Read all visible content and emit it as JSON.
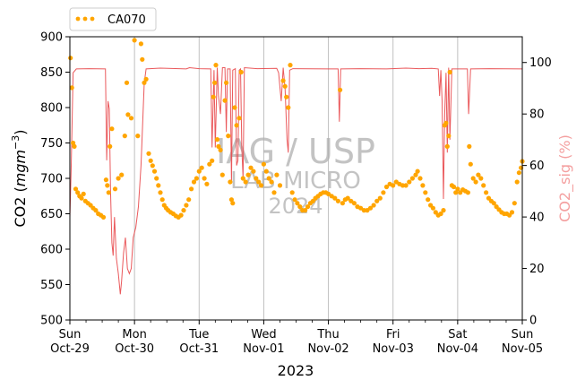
{
  "chart_data": {
    "type": "scatter+line",
    "xlabel": "2023",
    "ylabel_left": "CO2 (mgm⁻³)",
    "ylabel_left_prefix": "CO2 (",
    "ylabel_left_unit": "mgm",
    "ylabel_left_exp": "−3",
    "ylabel_left_suffix": ")",
    "ylabel_right": "CO2_sig (%)",
    "ylim_left": [
      500,
      900
    ],
    "ylim_right": [
      0,
      110
    ],
    "yticks_left": [
      500,
      550,
      600,
      650,
      700,
      750,
      800,
      850,
      900
    ],
    "yticks_right": [
      0,
      20,
      40,
      60,
      80,
      100
    ],
    "x_range_days": [
      0,
      7
    ],
    "xtick_labels": [
      {
        "day": "Sun",
        "date": "Oct-29"
      },
      {
        "day": "Mon",
        "date": "Oct-30"
      },
      {
        "day": "Tue",
        "date": "Oct-31"
      },
      {
        "day": "Wed",
        "date": "Nov-01"
      },
      {
        "day": "Thu",
        "date": "Nov-02"
      },
      {
        "day": "Fri",
        "date": "Nov-03"
      },
      {
        "day": "Sat",
        "date": "Nov-04"
      },
      {
        "day": "Sun",
        "date": "Nov-05"
      }
    ],
    "grid": "vertical at day boundaries",
    "legend": {
      "position": "top-left",
      "entries": [
        {
          "name": "CA070",
          "color": "#FFA500",
          "marker": "dots"
        }
      ]
    },
    "watermark": {
      "line1": "IAG / USP",
      "line2": "LAB MICRO",
      "line3": "2024"
    },
    "colors": {
      "scatter": "#FFA500",
      "line": "#E8474A",
      "right_axis_label": "#F4A0A0"
    },
    "series": [
      {
        "name": "CA070",
        "axis": "left",
        "style": "scatter",
        "points": [
          [
            0.01,
            870
          ],
          [
            0.03,
            828
          ],
          [
            0.05,
            750
          ],
          [
            0.07,
            745
          ],
          [
            0.09,
            685
          ],
          [
            0.12,
            680
          ],
          [
            0.15,
            675
          ],
          [
            0.18,
            672
          ],
          [
            0.21,
            678
          ],
          [
            0.24,
            668
          ],
          [
            0.28,
            665
          ],
          [
            0.32,
            662
          ],
          [
            0.36,
            658
          ],
          [
            0.4,
            655
          ],
          [
            0.44,
            650
          ],
          [
            0.48,
            648
          ],
          [
            0.52,
            645
          ],
          [
            0.56,
            698
          ],
          [
            0.58,
            690
          ],
          [
            0.6,
            680
          ],
          [
            0.62,
            745
          ],
          [
            0.65,
            770
          ],
          [
            0.7,
            685
          ],
          [
            0.75,
            700
          ],
          [
            0.8,
            705
          ],
          [
            0.85,
            760
          ],
          [
            0.88,
            835
          ],
          [
            0.9,
            790
          ],
          [
            0.95,
            785
          ],
          [
            1.0,
            895
          ],
          [
            1.05,
            760
          ],
          [
            1.1,
            890
          ],
          [
            1.12,
            868
          ],
          [
            1.15,
            835
          ],
          [
            1.18,
            840
          ],
          [
            1.22,
            735
          ],
          [
            1.25,
            725
          ],
          [
            1.28,
            718
          ],
          [
            1.31,
            710
          ],
          [
            1.34,
            700
          ],
          [
            1.37,
            690
          ],
          [
            1.4,
            680
          ],
          [
            1.43,
            670
          ],
          [
            1.46,
            662
          ],
          [
            1.49,
            658
          ],
          [
            1.52,
            655
          ],
          [
            1.56,
            652
          ],
          [
            1.6,
            650
          ],
          [
            1.64,
            647
          ],
          [
            1.68,
            645
          ],
          [
            1.72,
            648
          ],
          [
            1.76,
            655
          ],
          [
            1.8,
            662
          ],
          [
            1.84,
            670
          ],
          [
            1.88,
            685
          ],
          [
            1.92,
            695
          ],
          [
            1.96,
            700
          ],
          [
            2.0,
            710
          ],
          [
            2.04,
            715
          ],
          [
            2.08,
            700
          ],
          [
            2.12,
            692
          ],
          [
            2.16,
            720
          ],
          [
            2.2,
            725
          ],
          [
            2.22,
            815
          ],
          [
            2.24,
            835
          ],
          [
            2.26,
            860
          ],
          [
            2.28,
            755
          ],
          [
            2.3,
            745
          ],
          [
            2.33,
            740
          ],
          [
            2.36,
            705
          ],
          [
            2.4,
            810
          ],
          [
            2.42,
            835
          ],
          [
            2.45,
            760
          ],
          [
            2.48,
            695
          ],
          [
            2.5,
            670
          ],
          [
            2.52,
            665
          ],
          [
            2.55,
            800
          ],
          [
            2.58,
            775
          ],
          [
            2.62,
            785
          ],
          [
            2.65,
            850
          ],
          [
            2.68,
            700
          ],
          [
            2.72,
            695
          ],
          [
            2.76,
            705
          ],
          [
            2.8,
            715
          ],
          [
            2.84,
            710
          ],
          [
            2.88,
            700
          ],
          [
            2.92,
            695
          ],
          [
            2.96,
            690
          ],
          [
            3.0,
            720
          ],
          [
            3.04,
            710
          ],
          [
            3.08,
            700
          ],
          [
            3.12,
            695
          ],
          [
            3.16,
            680
          ],
          [
            3.2,
            705
          ],
          [
            3.25,
            690
          ],
          [
            3.3,
            838
          ],
          [
            3.33,
            830
          ],
          [
            3.35,
            815
          ],
          [
            3.38,
            800
          ],
          [
            3.41,
            860
          ],
          [
            3.44,
            680
          ],
          [
            3.48,
            670
          ],
          [
            3.52,
            665
          ],
          [
            3.56,
            660
          ],
          [
            3.6,
            655
          ],
          [
            3.64,
            655
          ],
          [
            3.68,
            660
          ],
          [
            3.72,
            665
          ],
          [
            3.76,
            668
          ],
          [
            3.8,
            672
          ],
          [
            3.84,
            675
          ],
          [
            3.88,
            678
          ],
          [
            3.92,
            680
          ],
          [
            3.96,
            680
          ],
          [
            4.0,
            678
          ],
          [
            4.05,
            675
          ],
          [
            4.1,
            672
          ],
          [
            4.15,
            668
          ],
          [
            4.18,
            825
          ],
          [
            4.22,
            665
          ],
          [
            4.26,
            670
          ],
          [
            4.3,
            672
          ],
          [
            4.35,
            668
          ],
          [
            4.4,
            665
          ],
          [
            4.45,
            660
          ],
          [
            4.5,
            658
          ],
          [
            4.55,
            655
          ],
          [
            4.6,
            655
          ],
          [
            4.65,
            658
          ],
          [
            4.7,
            662
          ],
          [
            4.75,
            668
          ],
          [
            4.8,
            672
          ],
          [
            4.85,
            680
          ],
          [
            4.9,
            688
          ],
          [
            4.95,
            692
          ],
          [
            5.0,
            690
          ],
          [
            5.05,
            695
          ],
          [
            5.1,
            692
          ],
          [
            5.15,
            690
          ],
          [
            5.2,
            690
          ],
          [
            5.25,
            695
          ],
          [
            5.3,
            700
          ],
          [
            5.35,
            705
          ],
          [
            5.38,
            710
          ],
          [
            5.42,
            700
          ],
          [
            5.46,
            690
          ],
          [
            5.5,
            680
          ],
          [
            5.54,
            670
          ],
          [
            5.58,
            662
          ],
          [
            5.62,
            658
          ],
          [
            5.66,
            652
          ],
          [
            5.7,
            648
          ],
          [
            5.74,
            650
          ],
          [
            5.78,
            655
          ],
          [
            5.8,
            775
          ],
          [
            5.82,
            778
          ],
          [
            5.84,
            745
          ],
          [
            5.86,
            760
          ],
          [
            5.88,
            850
          ],
          [
            5.91,
            690
          ],
          [
            5.94,
            688
          ],
          [
            5.97,
            680
          ],
          [
            6.0,
            685
          ],
          [
            6.04,
            680
          ],
          [
            6.08,
            684
          ],
          [
            6.12,
            682
          ],
          [
            6.16,
            680
          ],
          [
            6.18,
            745
          ],
          [
            6.2,
            720
          ],
          [
            6.24,
            700
          ],
          [
            6.28,
            695
          ],
          [
            6.32,
            705
          ],
          [
            6.36,
            700
          ],
          [
            6.4,
            690
          ],
          [
            6.44,
            680
          ],
          [
            6.48,
            672
          ],
          [
            6.52,
            668
          ],
          [
            6.56,
            665
          ],
          [
            6.6,
            660
          ],
          [
            6.64,
            656
          ],
          [
            6.68,
            652
          ],
          [
            6.72,
            650
          ],
          [
            6.76,
            650
          ],
          [
            6.8,
            648
          ],
          [
            6.84,
            652
          ],
          [
            6.88,
            665
          ],
          [
            6.92,
            695
          ],
          [
            6.95,
            708
          ],
          [
            6.98,
            715
          ],
          [
            7.0,
            724
          ]
        ]
      },
      {
        "name": "CO2_sig",
        "axis": "right",
        "style": "line",
        "points": [
          [
            0.0,
            40
          ],
          [
            0.02,
            58
          ],
          [
            0.05,
            96
          ],
          [
            0.1,
            97.5
          ],
          [
            0.3,
            97.6
          ],
          [
            0.55,
            97.5
          ],
          [
            0.57,
            62
          ],
          [
            0.59,
            85
          ],
          [
            0.61,
            82
          ],
          [
            0.63,
            50
          ],
          [
            0.65,
            30
          ],
          [
            0.67,
            25
          ],
          [
            0.69,
            40
          ],
          [
            0.72,
            24
          ],
          [
            0.75,
            18
          ],
          [
            0.78,
            10
          ],
          [
            0.8,
            15
          ],
          [
            0.83,
            26
          ],
          [
            0.86,
            32
          ],
          [
            0.89,
            20
          ],
          [
            0.92,
            18
          ],
          [
            0.95,
            20
          ],
          [
            0.98,
            32
          ],
          [
            1.02,
            36
          ],
          [
            1.06,
            44
          ],
          [
            1.1,
            60
          ],
          [
            1.15,
            92
          ],
          [
            1.18,
            97.5
          ],
          [
            1.4,
            97.8
          ],
          [
            1.8,
            97.5
          ],
          [
            1.85,
            98
          ],
          [
            2.0,
            97.6
          ],
          [
            2.18,
            97.5
          ],
          [
            2.2,
            67
          ],
          [
            2.23,
            97
          ],
          [
            2.25,
            67
          ],
          [
            2.28,
            98
          ],
          [
            2.3,
            87
          ],
          [
            2.33,
            80
          ],
          [
            2.36,
            98
          ],
          [
            2.4,
            98
          ],
          [
            2.42,
            73
          ],
          [
            2.44,
            97.5
          ],
          [
            2.48,
            97.5
          ],
          [
            2.5,
            53
          ],
          [
            2.52,
            97
          ],
          [
            2.56,
            97.6
          ],
          [
            2.58,
            60
          ],
          [
            2.6,
            62
          ],
          [
            2.62,
            97
          ],
          [
            2.64,
            97.5
          ],
          [
            2.66,
            67
          ],
          [
            2.68,
            55
          ],
          [
            2.7,
            98
          ],
          [
            2.9,
            97.6
          ],
          [
            3.2,
            97.7
          ],
          [
            3.23,
            96
          ],
          [
            3.27,
            85
          ],
          [
            3.3,
            98
          ],
          [
            3.33,
            90
          ],
          [
            3.36,
            70
          ],
          [
            3.38,
            65
          ],
          [
            3.4,
            97
          ],
          [
            3.45,
            97.6
          ],
          [
            4.0,
            97.5
          ],
          [
            4.15,
            97.5
          ],
          [
            4.17,
            77
          ],
          [
            4.19,
            97.5
          ],
          [
            4.5,
            97.6
          ],
          [
            4.9,
            97.5
          ],
          [
            5.2,
            97.8
          ],
          [
            5.4,
            97.6
          ],
          [
            5.6,
            97.7
          ],
          [
            5.7,
            97.5
          ],
          [
            5.72,
            87
          ],
          [
            5.74,
            97
          ],
          [
            5.76,
            85
          ],
          [
            5.78,
            47
          ],
          [
            5.8,
            80
          ],
          [
            5.82,
            96
          ],
          [
            5.84,
            65
          ],
          [
            5.86,
            98
          ],
          [
            5.88,
            70
          ],
          [
            5.91,
            97.5
          ],
          [
            6.1,
            97.5
          ],
          [
            6.15,
            97.5
          ],
          [
            6.17,
            80
          ],
          [
            6.2,
            97.5
          ],
          [
            6.5,
            97.6
          ],
          [
            7.0,
            97.5
          ]
        ]
      }
    ]
  }
}
